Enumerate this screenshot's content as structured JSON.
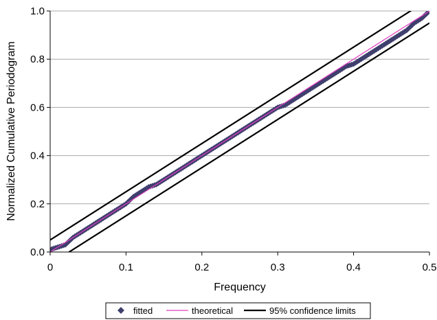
{
  "chart_data": {
    "type": "scatter",
    "title": "",
    "xlabel": "Frequency",
    "ylabel": "Normalized Cumulative Periodogram",
    "xlim": [
      0,
      0.5
    ],
    "ylim": [
      0,
      1.0
    ],
    "x_ticks": [
      "0",
      "0.1",
      "0.2",
      "0.3",
      "0.4",
      "0.5"
    ],
    "y_ticks": [
      "0.0",
      "0.2",
      "0.4",
      "0.6",
      "0.8",
      "1.0"
    ],
    "y_tick_values": [
      0,
      0.2,
      0.4,
      0.6,
      0.8,
      1.0
    ],
    "x_tick_values": [
      0,
      0.1,
      0.2,
      0.3,
      0.4,
      0.5
    ],
    "grid": "horizontal",
    "legend_position": "bottom",
    "series": [
      {
        "name": "fitted",
        "kind": "markers",
        "color": "#3f3f6e",
        "marker": "diamond",
        "x": [
          0.0,
          0.01,
          0.02,
          0.03,
          0.04,
          0.05,
          0.06,
          0.07,
          0.08,
          0.09,
          0.1,
          0.11,
          0.12,
          0.13,
          0.14,
          0.15,
          0.16,
          0.17,
          0.18,
          0.19,
          0.2,
          0.21,
          0.22,
          0.23,
          0.24,
          0.25,
          0.26,
          0.27,
          0.28,
          0.29,
          0.3,
          0.31,
          0.32,
          0.33,
          0.34,
          0.35,
          0.36,
          0.37,
          0.38,
          0.39,
          0.4,
          0.41,
          0.42,
          0.43,
          0.44,
          0.45,
          0.46,
          0.47,
          0.48,
          0.49,
          0.5
        ],
        "y": [
          0.01,
          0.02,
          0.03,
          0.06,
          0.08,
          0.1,
          0.12,
          0.14,
          0.16,
          0.18,
          0.2,
          0.23,
          0.25,
          0.27,
          0.28,
          0.3,
          0.32,
          0.34,
          0.36,
          0.38,
          0.4,
          0.42,
          0.44,
          0.46,
          0.48,
          0.5,
          0.52,
          0.54,
          0.56,
          0.58,
          0.6,
          0.61,
          0.63,
          0.65,
          0.67,
          0.69,
          0.71,
          0.73,
          0.75,
          0.77,
          0.78,
          0.8,
          0.82,
          0.84,
          0.86,
          0.88,
          0.9,
          0.92,
          0.95,
          0.97,
          1.0
        ]
      },
      {
        "name": "theoretical",
        "kind": "line",
        "color": "#e040c0",
        "x": [
          0,
          0.5
        ],
        "y": [
          0,
          1.0
        ]
      },
      {
        "name": "95% confidence limits",
        "kind": "band",
        "color": "#000000",
        "upper": {
          "x": [
            0,
            0.5
          ],
          "y": [
            0.05,
            1.05
          ]
        },
        "lower": {
          "x": [
            0,
            0.5
          ],
          "y": [
            -0.05,
            0.95
          ]
        }
      }
    ]
  }
}
